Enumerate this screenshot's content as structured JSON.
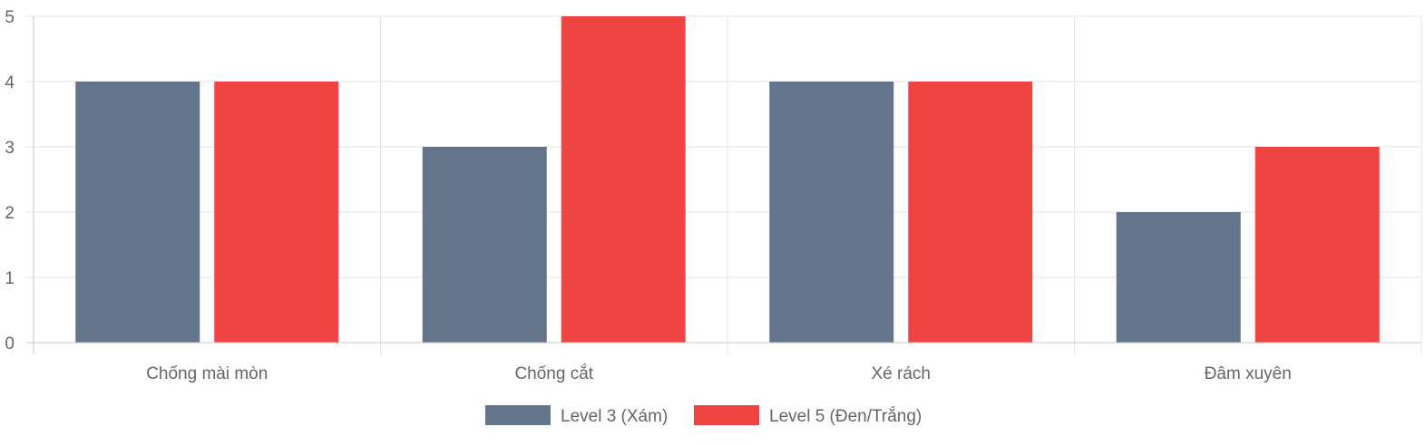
{
  "chart_data": {
    "type": "bar",
    "categories": [
      "Chống mài mòn",
      "Chống cắt",
      "Xé rách",
      "Đâm xuyên"
    ],
    "series": [
      {
        "name": "Level 3 (Xám)",
        "values": [
          4,
          3,
          4,
          2
        ],
        "color": "#64748b"
      },
      {
        "name": "Level 5 (Đen/Trắng)",
        "values": [
          4,
          5,
          4,
          3
        ],
        "color": "#ef4444"
      }
    ],
    "ylim": [
      0,
      5
    ],
    "yticks": [
      "0",
      "1",
      "2",
      "3",
      "4",
      "5"
    ],
    "grid": true,
    "legend_position": "bottom"
  }
}
